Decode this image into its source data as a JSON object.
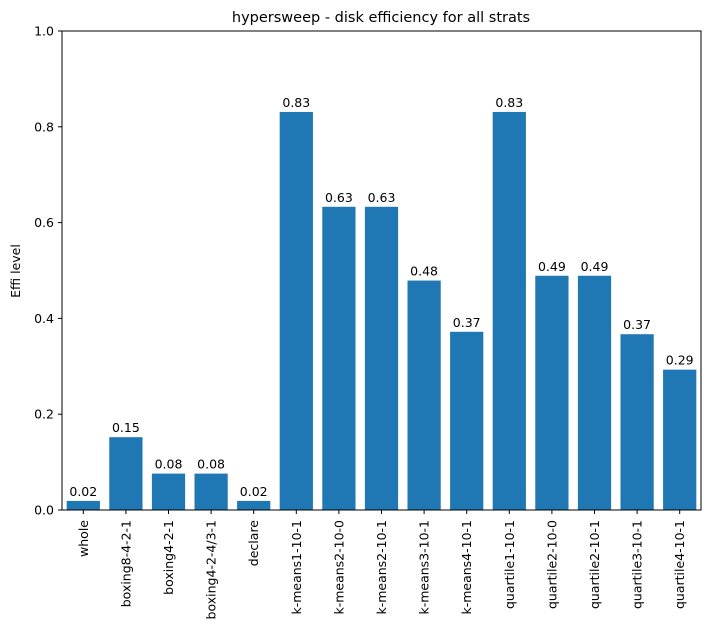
{
  "chart_data": {
    "type": "bar",
    "title": "hypersweep - disk efficiency for all strats",
    "xlabel": "",
    "ylabel": "Effi level",
    "ylim": [
      0,
      1.0
    ],
    "yticks": [
      "0.0",
      "0.2",
      "0.4",
      "0.6",
      "0.8",
      "1.0"
    ],
    "categories": [
      "whole",
      "boxing8-4-2-1",
      "boxing4-2-1",
      "boxing4-2-4/3-1",
      "declare",
      "k-means1-10-1",
      "k-means2-10-0",
      "k-means2-10-1",
      "k-means3-10-1",
      "k-means4-10-1",
      "quartile1-10-1",
      "quartile2-10-0",
      "quartile2-10-1",
      "quartile3-10-1",
      "quartile4-10-1"
    ],
    "values": [
      0.019,
      0.152,
      0.076,
      0.076,
      0.019,
      0.831,
      0.633,
      0.633,
      0.479,
      0.372,
      0.831,
      0.489,
      0.489,
      0.367,
      0.293
    ],
    "labels": [
      "0.02",
      "0.15",
      "0.08",
      "0.08",
      "0.02",
      "0.83",
      "0.63",
      "0.63",
      "0.48",
      "0.37",
      "0.83",
      "0.49",
      "0.49",
      "0.37",
      "0.29"
    ],
    "bar_color": "#1f77b4",
    "grid": false,
    "legend": "none"
  }
}
